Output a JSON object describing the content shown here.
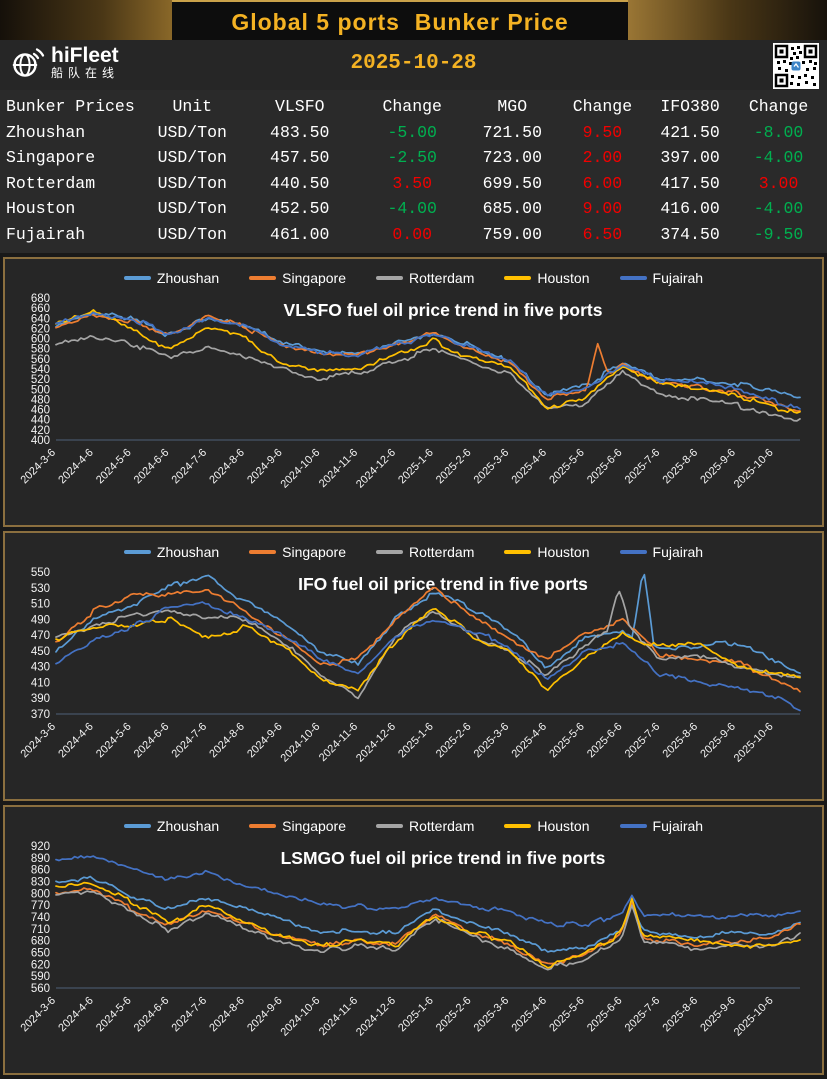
{
  "header": {
    "title": "Global 5 ports  Bunker Price",
    "logo_name": "hiFleet",
    "logo_cn": "船队在线",
    "date": "2025-10-28"
  },
  "colors": {
    "accent_gold": "#f4b223",
    "change_positive": "#f20000",
    "change_negative": "#00b050",
    "panel_border": "#8b6f3f",
    "axis_line": "#4d6078"
  },
  "table": {
    "columns": [
      "Bunker Prices",
      "Unit",
      "VLSFO",
      "Change",
      "MGO",
      "Change",
      "IFO380",
      "Change"
    ],
    "change_columns": [
      3,
      5,
      7
    ],
    "rows": [
      {
        "cells": [
          "Zhoushan",
          "USD/Ton",
          "483.50",
          "-5.00",
          "721.50",
          "9.50",
          "421.50",
          "-8.00"
        ]
      },
      {
        "cells": [
          "Singapore",
          "USD/Ton",
          "457.50",
          "-2.50",
          "723.00",
          "2.00",
          "397.00",
          "-4.00"
        ]
      },
      {
        "cells": [
          "Rotterdam",
          "USD/Ton",
          "440.50",
          "3.50",
          "699.50",
          "6.00",
          "417.50",
          "3.00"
        ]
      },
      {
        "cells": [
          "Houston",
          "USD/Ton",
          "452.50",
          "-4.00",
          "685.00",
          "9.00",
          "416.00",
          "-4.00"
        ]
      },
      {
        "cells": [
          "Fujairah",
          "USD/Ton",
          "461.00",
          "0.00",
          "759.00",
          "6.50",
          "374.50",
          "-9.50"
        ]
      }
    ]
  },
  "chart_data": [
    {
      "type": "line",
      "title": "VLSFO fuel oil price trend in five ports",
      "ylim": [
        400,
        680
      ],
      "y_ticks": [
        680,
        660,
        640,
        620,
        600,
        580,
        560,
        540,
        520,
        500,
        480,
        460,
        440,
        420,
        400
      ],
      "grid": false,
      "legend_position": "top",
      "x_ticks": [
        "2024-3-6",
        "2024-4-6",
        "2024-5-6",
        "2024-6-6",
        "2024-7-6",
        "2024-8-6",
        "2024-9-6",
        "2024-10-6",
        "2024-11-6",
        "2024-12-6",
        "2025-1-6",
        "2025-2-6",
        "2025-3-6",
        "2025-4-6",
        "2025-5-6",
        "2025-6-6",
        "2025-7-6",
        "2025-8-6",
        "2025-9-6",
        "2025-10-6"
      ],
      "anchor_dates": [
        "2024-3-6",
        "2024-4-6",
        "2024-5-6",
        "2024-6-6",
        "2024-7-6",
        "2024-8-6",
        "2024-9-6",
        "2024-10-6",
        "2024-11-6",
        "2024-12-6",
        "2025-1-6",
        "2025-2-6",
        "2025-3-6",
        "2025-4-6",
        "2025-5-6",
        "2025-6-6",
        "2025-7-6",
        "2025-8-6",
        "2025-9-6",
        "2025-10-6",
        "2025-10-28"
      ],
      "series": [
        {
          "name": "Zhoushan",
          "color": "#5B9BD5",
          "values": [
            628,
            652,
            640,
            606,
            640,
            628,
            590,
            578,
            570,
            592,
            610,
            585,
            558,
            490,
            505,
            552,
            520,
            520,
            510,
            496,
            484
          ]
        },
        {
          "name": "Singapore",
          "color": "#ED7D31",
          "values": [
            624,
            646,
            634,
            610,
            644,
            622,
            584,
            570,
            566,
            586,
            612,
            580,
            554,
            480,
            500,
            548,
            515,
            505,
            494,
            470,
            458
          ]
        },
        {
          "name": "Rotterdam",
          "color": "#A5A5A5",
          "values": [
            586,
            606,
            590,
            562,
            582,
            560,
            540,
            520,
            532,
            556,
            580,
            550,
            530,
            462,
            472,
            534,
            490,
            480,
            470,
            446,
            440
          ]
        },
        {
          "name": "Houston",
          "color": "#FFC000",
          "values": [
            634,
            654,
            618,
            580,
            624,
            600,
            546,
            540,
            542,
            566,
            596,
            560,
            545,
            466,
            482,
            544,
            510,
            500,
            490,
            464,
            452
          ]
        },
        {
          "name": "Fujairah",
          "color": "#4472C4",
          "values": [
            630,
            648,
            638,
            608,
            640,
            626,
            588,
            574,
            568,
            588,
            608,
            582,
            556,
            486,
            500,
            550,
            518,
            512,
            500,
            478,
            461
          ]
        }
      ],
      "spikes": [
        {
          "series": "Singapore",
          "t": 14.35,
          "value": 592
        }
      ]
    },
    {
      "type": "line",
      "title": "IFO fuel oil price trend in five ports",
      "ylim": [
        370,
        550
      ],
      "y_ticks": [
        550,
        530,
        510,
        490,
        470,
        450,
        430,
        410,
        390,
        370
      ],
      "grid": false,
      "legend_position": "top",
      "x_ticks": [
        "2024-3-6",
        "2024-4-6",
        "2024-5-6",
        "2024-6-6",
        "2024-7-6",
        "2024-8-6",
        "2024-9-6",
        "2024-10-6",
        "2024-11-6",
        "2024-12-6",
        "2025-1-6",
        "2025-2-6",
        "2025-3-6",
        "2025-4-6",
        "2025-5-6",
        "2025-6-6",
        "2025-7-6",
        "2025-8-6",
        "2025-9-6",
        "2025-10-6"
      ],
      "anchor_dates": [
        "2024-3-6",
        "2024-4-6",
        "2024-5-6",
        "2024-6-6",
        "2024-7-6",
        "2024-8-6",
        "2024-9-6",
        "2024-10-6",
        "2024-11-6",
        "2024-12-6",
        "2025-1-6",
        "2025-2-6",
        "2025-3-6",
        "2025-4-6",
        "2025-5-6",
        "2025-6-6",
        "2025-7-6",
        "2025-8-6",
        "2025-9-6",
        "2025-10-6",
        "2025-10-28"
      ],
      "series": [
        {
          "name": "Zhoushan",
          "color": "#5B9BD5",
          "values": [
            450,
            492,
            506,
            532,
            546,
            512,
            490,
            450,
            432,
            492,
            524,
            504,
            478,
            430,
            464,
            476,
            452,
            456,
            460,
            440,
            422
          ]
        },
        {
          "name": "Singapore",
          "color": "#ED7D31",
          "values": [
            462,
            500,
            520,
            521,
            526,
            500,
            470,
            432,
            440,
            490,
            530,
            494,
            466,
            440,
            470,
            490,
            446,
            440,
            436,
            414,
            397
          ]
        },
        {
          "name": "Rotterdam",
          "color": "#A5A5A5",
          "values": [
            466,
            482,
            494,
            500,
            492,
            490,
            462,
            420,
            392,
            470,
            500,
            470,
            450,
            420,
            456,
            490,
            440,
            446,
            430,
            420,
            418
          ]
        },
        {
          "name": "Houston",
          "color": "#FFC000",
          "values": [
            464,
            480,
            482,
            490,
            466,
            480,
            456,
            416,
            402,
            462,
            506,
            470,
            450,
            400,
            440,
            470,
            456,
            460,
            430,
            420,
            416
          ]
        },
        {
          "name": "Fujairah",
          "color": "#4472C4",
          "values": [
            434,
            464,
            480,
            504,
            510,
            490,
            470,
            440,
            420,
            470,
            490,
            476,
            456,
            414,
            450,
            460,
            420,
            410,
            405,
            394,
            375
          ]
        }
      ],
      "spikes": [
        {
          "series": "Zhoushan",
          "t": 15.55,
          "value": 556
        },
        {
          "series": "Rotterdam",
          "t": 14.9,
          "value": 528
        }
      ]
    },
    {
      "type": "line",
      "title": "LSMGO fuel oil price trend in five ports",
      "ylim": [
        560,
        920
      ],
      "y_ticks": [
        920,
        890,
        860,
        830,
        800,
        770,
        740,
        710,
        680,
        650,
        620,
        590,
        560
      ],
      "grid": false,
      "legend_position": "top",
      "x_ticks": [
        "2024-3-6",
        "2024-4-6",
        "2024-5-6",
        "2024-6-6",
        "2024-7-6",
        "2024-8-6",
        "2024-9-6",
        "2024-10-6",
        "2024-11-6",
        "2024-12-6",
        "2025-1-6",
        "2025-2-6",
        "2025-3-6",
        "2025-4-6",
        "2025-5-6",
        "2025-6-6",
        "2025-7-6",
        "2025-8-6",
        "2025-9-6",
        "2025-10-6"
      ],
      "anchor_dates": [
        "2024-3-6",
        "2024-4-6",
        "2024-5-6",
        "2024-6-6",
        "2024-7-6",
        "2024-8-6",
        "2024-9-6",
        "2024-10-6",
        "2024-11-6",
        "2024-12-6",
        "2025-1-6",
        "2025-2-6",
        "2025-3-6",
        "2025-4-6",
        "2025-5-6",
        "2025-6-6",
        "2025-7-6",
        "2025-8-6",
        "2025-9-6",
        "2025-10-6",
        "2025-10-28"
      ],
      "series": [
        {
          "name": "Zhoushan",
          "color": "#5B9BD5",
          "values": [
            830,
            838,
            790,
            760,
            790,
            762,
            730,
            706,
            700,
            700,
            758,
            720,
            700,
            650,
            662,
            712,
            700,
            690,
            700,
            700,
            722
          ]
        },
        {
          "name": "Singapore",
          "color": "#ED7D31",
          "values": [
            796,
            810,
            760,
            720,
            762,
            722,
            690,
            670,
            680,
            672,
            748,
            700,
            670,
            620,
            642,
            700,
            680,
            670,
            680,
            690,
            723
          ]
        },
        {
          "name": "Rotterdam",
          "color": "#A5A5A5",
          "values": [
            790,
            804,
            750,
            706,
            752,
            712,
            676,
            656,
            666,
            656,
            736,
            690,
            656,
            610,
            632,
            690,
            672,
            660,
            670,
            668,
            700
          ]
        },
        {
          "name": "Houston",
          "color": "#FFC000",
          "values": [
            820,
            826,
            780,
            722,
            770,
            726,
            690,
            666,
            680,
            666,
            744,
            700,
            680,
            616,
            646,
            700,
            690,
            680,
            670,
            665,
            685
          ]
        },
        {
          "name": "Fujairah",
          "color": "#4472C4",
          "values": [
            886,
            894,
            864,
            838,
            856,
            820,
            798,
            772,
            766,
            760,
            790,
            766,
            754,
            720,
            722,
            748,
            744,
            740,
            746,
            740,
            759
          ]
        }
      ],
      "spikes": [
        {
          "series": "Zhoushan",
          "t": 15.25,
          "value": 778
        },
        {
          "series": "Singapore",
          "t": 15.25,
          "value": 775
        },
        {
          "series": "Rotterdam",
          "t": 15.25,
          "value": 770
        },
        {
          "series": "Houston",
          "t": 15.25,
          "value": 788
        },
        {
          "series": "Fujairah",
          "t": 15.25,
          "value": 795
        }
      ]
    }
  ]
}
